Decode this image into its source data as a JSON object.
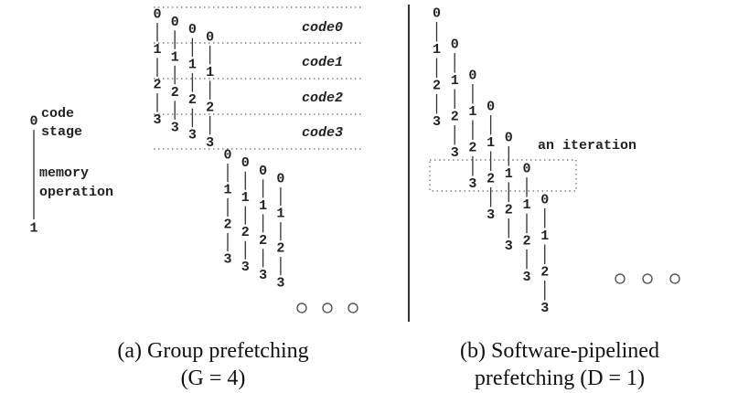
{
  "stages": [
    "0",
    "1",
    "2",
    "3"
  ],
  "legend": {
    "top": "0",
    "bottom": "1",
    "code_label": [
      "code",
      "stage"
    ],
    "mem_label": [
      "memory",
      "operation"
    ]
  },
  "panel_a": {
    "code_rows": [
      "code0",
      "code1",
      "code2",
      "code3"
    ],
    "group_size": 4,
    "caption_line1": "(a) Group prefetching",
    "caption_line2": "(G = 4)"
  },
  "panel_b": {
    "iteration_label": "an iteration",
    "caption_line1": "(b) Software-pipelined",
    "caption_line2": "prefetching (D = 1)"
  },
  "ellipsis_icon": "three-circles"
}
